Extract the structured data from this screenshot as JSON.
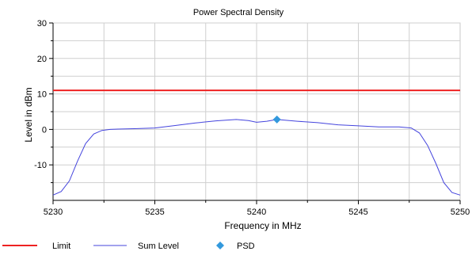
{
  "chart_data": {
    "type": "line",
    "title": "Power Spectral Density",
    "xlabel": "Frequency in MHz",
    "ylabel": "Level in dBm",
    "xlim": [
      5230,
      5250
    ],
    "ylim": [
      -20,
      30
    ],
    "x_ticks": [
      5230,
      5235,
      5240,
      5245,
      5250
    ],
    "y_ticks": [
      30,
      20,
      10,
      0,
      -10
    ],
    "grid": true,
    "legend_position": "bottom",
    "series": [
      {
        "name": "Limit",
        "kind": "hline",
        "color": "#ee2222",
        "x": [
          5230,
          5250
        ],
        "y": [
          11,
          11
        ]
      },
      {
        "name": "Sum Level",
        "kind": "line",
        "color": "#4444dd",
        "x": [
          5230,
          5230.4,
          5230.8,
          5231.2,
          5231.6,
          5232.0,
          5232.4,
          5232.8,
          5233.2,
          5234.0,
          5235.0,
          5236.0,
          5237.0,
          5238.0,
          5239.0,
          5239.6,
          5240.0,
          5240.5,
          5241.0,
          5242.0,
          5243.0,
          5244.0,
          5245.0,
          5246.0,
          5247.0,
          5247.6,
          5248.0,
          5248.4,
          5248.8,
          5249.2,
          5249.6,
          5250
        ],
        "y": [
          -18.5,
          -17.5,
          -14.5,
          -9,
          -4,
          -1.3,
          -0.3,
          0,
          0.1,
          0.2,
          0.4,
          1.1,
          1.8,
          2.4,
          2.8,
          2.5,
          2.0,
          2.3,
          2.8,
          2.3,
          1.9,
          1.3,
          1.0,
          0.7,
          0.7,
          0.4,
          -1.0,
          -4.5,
          -9.5,
          -15.0,
          -17.8,
          -18.5
        ]
      },
      {
        "name": "PSD",
        "kind": "marker",
        "color": "#3399dd",
        "x": [
          5241
        ],
        "y": [
          2.8
        ]
      }
    ]
  }
}
